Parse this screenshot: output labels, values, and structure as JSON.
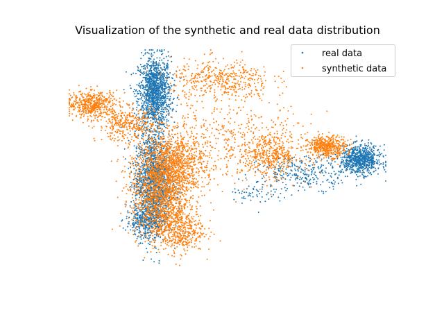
{
  "chart_data": {
    "type": "scatter",
    "title": "Visualization of the synthetic and real data distribution",
    "xlabel": "",
    "ylabel": "",
    "axes_visible": false,
    "grid": false,
    "legend_position": "top-right",
    "xlim": [
      0,
      100
    ],
    "ylim": [
      0,
      100
    ],
    "series": [
      {
        "name": "real data",
        "color": "#1f77b4",
        "clusters": [
          {
            "cx": 27.0,
            "cy": 82.0,
            "sx": 2.6,
            "sy": 7.5,
            "n": 1300
          },
          {
            "cx": 26.5,
            "cy": 44.0,
            "sx": 3.0,
            "sy": 11.0,
            "n": 1500
          },
          {
            "cx": 92.0,
            "cy": 53.5,
            "sx": 3.2,
            "sy": 3.0,
            "n": 750
          },
          {
            "cx": 75.0,
            "cy": 48.0,
            "sx": 7.5,
            "sy": 3.5,
            "n": 280
          },
          {
            "cx": 59.0,
            "cy": 40.0,
            "sx": 4.0,
            "sy": 3.0,
            "n": 60
          },
          {
            "cx": 24.0,
            "cy": 27.0,
            "sx": 3.0,
            "sy": 3.0,
            "n": 300
          }
        ]
      },
      {
        "name": "synthetic data",
        "color": "#ff7f0e",
        "clusters": [
          {
            "cx": 7.5,
            "cy": 77.0,
            "sx": 4.0,
            "sy": 2.8,
            "n": 500
          },
          {
            "cx": 18.5,
            "cy": 68.5,
            "sx": 5.0,
            "sy": 3.5,
            "n": 350
          },
          {
            "cx": 32.0,
            "cy": 51.0,
            "sx": 5.5,
            "sy": 7.0,
            "n": 1300
          },
          {
            "cx": 28.5,
            "cy": 36.0,
            "sx": 4.5,
            "sy": 8.0,
            "n": 900
          },
          {
            "cx": 34.5,
            "cy": 24.0,
            "sx": 4.0,
            "sy": 5.0,
            "n": 500
          },
          {
            "cx": 48.0,
            "cy": 87.0,
            "sx": 8.0,
            "sy": 4.5,
            "n": 450
          },
          {
            "cx": 63.5,
            "cy": 55.5,
            "sx": 5.0,
            "sy": 4.5,
            "n": 450
          },
          {
            "cx": 81.5,
            "cy": 59.0,
            "sx": 3.0,
            "sy": 2.2,
            "n": 450
          },
          {
            "cx": 50.0,
            "cy": 62.0,
            "sx": 13.0,
            "sy": 9.0,
            "n": 400
          }
        ]
      }
    ]
  }
}
